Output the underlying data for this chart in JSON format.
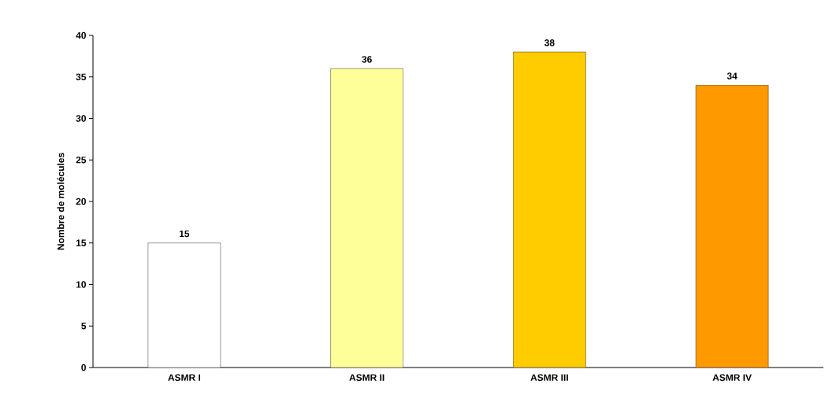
{
  "chart_data": {
    "type": "bar",
    "ylabel": "Nombre de molécules",
    "categories": [
      "ASMR I",
      "ASMR II",
      "ASMR III",
      "ASMR IV"
    ],
    "values": [
      15,
      36,
      38,
      34
    ],
    "colors": [
      "#ffffff",
      "#ffff99",
      "#ffcc00",
      "#ff9900"
    ],
    "ylim": [
      0,
      40
    ],
    "yticks": [
      0,
      5,
      10,
      15,
      20,
      25,
      30,
      35,
      40
    ],
    "data_labels": true
  }
}
